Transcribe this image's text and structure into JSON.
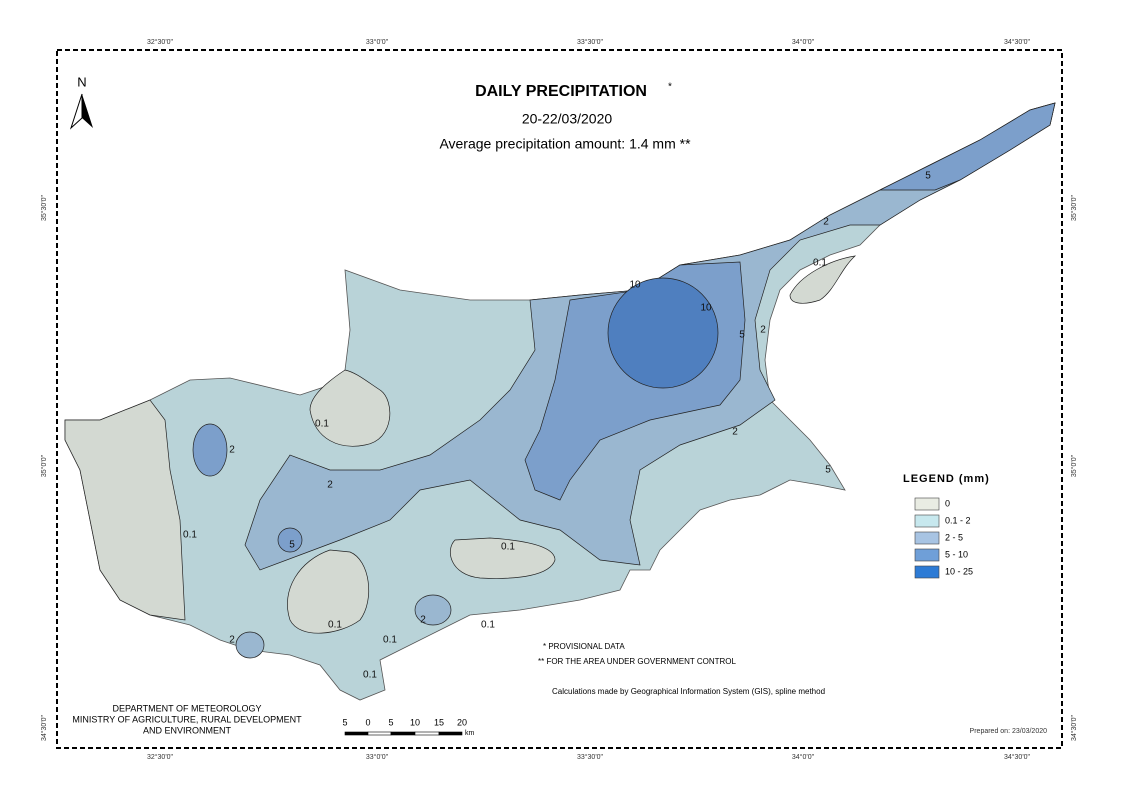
{
  "header": {
    "title": "DAILY PRECIPITATION",
    "title_mark": "*",
    "date": "20-22/03/2020",
    "average": "Average precipitation amount: 1.4 mm  **"
  },
  "north": "N",
  "graticule": {
    "longitudes": [
      "32°30'0\"",
      "33°0'0\"",
      "33°30'0\"",
      "34°0'0\"",
      "34°30'0\""
    ],
    "latitudes": [
      "35°30'0\"",
      "35°0'0\"",
      "34°30'0\""
    ]
  },
  "legend": {
    "title": "LEGEND (mm)",
    "items": [
      {
        "label": "0",
        "color": "#e9ece3"
      },
      {
        "label": "0.1 - 2",
        "color": "#c7e8ee"
      },
      {
        "label": "2 - 5",
        "color": "#a8c4e3"
      },
      {
        "label": "5 - 10",
        "color": "#6f9fd8"
      },
      {
        "label": "10 - 25",
        "color": "#2d7bd5"
      }
    ]
  },
  "contour_labels": [
    "10",
    "10",
    "5",
    "2",
    "0.1",
    "2",
    "5",
    "2",
    "5",
    "0.1",
    "2",
    "2",
    "5",
    "0.1",
    "0.1",
    "0.1",
    "0.1",
    "2",
    "0.1",
    "2",
    "0.1"
  ],
  "notes": [
    "* PROVISIONAL DATA",
    "** FOR THE AREA UNDER GOVERNMENT CONTROL"
  ],
  "method": "Calculations made by Geographical Information System (GIS), spline method",
  "department": [
    "DEPARTMENT OF METEOROLOGY",
    "MINISTRY OF AGRICULTURE, RURAL DEVELOPMENT",
    "AND ENVIRONMENT"
  ],
  "scale": {
    "ticks": [
      "5",
      "0",
      "5",
      "10",
      "15",
      "20"
    ],
    "unit": "km"
  },
  "prepared": "Prepared on: 23/03/2020"
}
